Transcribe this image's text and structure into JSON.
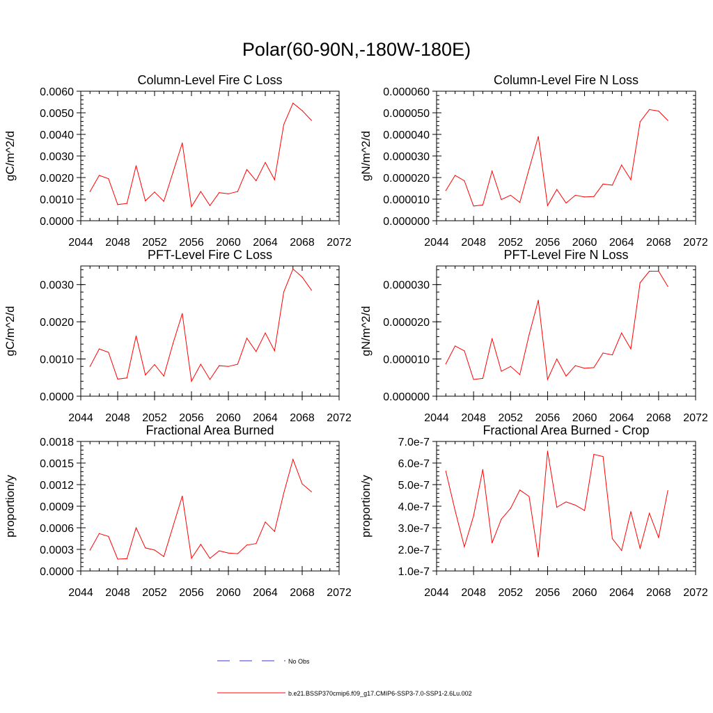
{
  "title": "Polar(60-90N,-180W-180E)",
  "legend": {
    "items": [
      {
        "label": "No Obs",
        "style": "dashed",
        "color": "#3a3acc"
      },
      {
        "label": "b.e21.BSSP370cmip6.f09_g17.CMIP6-SSP3-7.0-SSP1-2.6Lu.002",
        "style": "solid",
        "color": "#ff0000"
      }
    ]
  },
  "chart_data": [
    {
      "type": "line",
      "title": "Column-Level Fire C Loss",
      "ylabel": "gC/m^2/d",
      "xlim": [
        2044,
        2072
      ],
      "xticks": [
        "2044",
        "2048",
        "2052",
        "2056",
        "2060",
        "2064",
        "2068",
        "2072"
      ],
      "ylim": [
        0,
        0.006
      ],
      "yticks": [
        "0.0000",
        "0.0010",
        "0.0020",
        "0.0030",
        "0.0040",
        "0.0050",
        "0.0060"
      ],
      "series": [
        {
          "color": "#ff0000",
          "x": [
            2045,
            2046,
            2047,
            2048,
            2049,
            2050,
            2051,
            2052,
            2053,
            2054,
            2055,
            2056,
            2057,
            2058,
            2059,
            2060,
            2061,
            2062,
            2063,
            2064,
            2065,
            2066,
            2067,
            2068,
            2069
          ],
          "y": [
            0.00135,
            0.0021,
            0.00195,
            0.00075,
            0.0008,
            0.00255,
            0.00092,
            0.00133,
            0.0009,
            0.00225,
            0.0036,
            0.00065,
            0.00135,
            0.0007,
            0.0013,
            0.00125,
            0.00135,
            0.00237,
            0.00185,
            0.0027,
            0.0019,
            0.00445,
            0.00545,
            0.0051,
            0.00465
          ]
        }
      ]
    },
    {
      "type": "line",
      "title": "Column-Level Fire N Loss",
      "ylabel": "gN/m^2/d",
      "xlim": [
        2044,
        2072
      ],
      "xticks": [
        "2044",
        "2048",
        "2052",
        "2056",
        "2060",
        "2064",
        "2068",
        "2072"
      ],
      "ylim": [
        0,
        6e-05
      ],
      "yticks": [
        "0.000000",
        "0.000010",
        "0.000020",
        "0.000030",
        "0.000040",
        "0.000050",
        "0.000060"
      ],
      "series": [
        {
          "color": "#ff0000",
          "x": [
            2045,
            2046,
            2047,
            2048,
            2049,
            2050,
            2051,
            2052,
            2053,
            2054,
            2055,
            2056,
            2057,
            2058,
            2059,
            2060,
            2061,
            2062,
            2063,
            2064,
            2065,
            2066,
            2067,
            2068,
            2069
          ],
          "y": [
            1.4e-05,
            2.1e-05,
            1.85e-05,
            6.8e-06,
            7.3e-06,
            2.3e-05,
            9.8e-06,
            1.18e-05,
            8.5e-06,
            2.4e-05,
            3.9e-05,
            7e-06,
            1.45e-05,
            8.2e-06,
            1.18e-05,
            1.1e-05,
            1.12e-05,
            1.7e-05,
            1.65e-05,
            2.58e-05,
            1.9e-05,
            4.58e-05,
            5.15e-05,
            5.08e-05,
            4.65e-05
          ]
        }
      ]
    },
    {
      "type": "line",
      "title": "PFT-Level Fire C Loss",
      "ylabel": "gC/m^2/d",
      "xlim": [
        2044,
        2072
      ],
      "xticks": [
        "2044",
        "2048",
        "2052",
        "2056",
        "2060",
        "2064",
        "2068",
        "2072"
      ],
      "ylim": [
        0,
        0.0035
      ],
      "yticks": [
        "0.0000",
        "0.0010",
        "0.0020",
        "0.0030"
      ],
      "yticks_values": [
        0,
        0.001,
        0.002,
        0.003
      ],
      "series": [
        {
          "color": "#ff0000",
          "x": [
            2045,
            2046,
            2047,
            2048,
            2049,
            2050,
            2051,
            2052,
            2053,
            2054,
            2055,
            2056,
            2057,
            2058,
            2059,
            2060,
            2061,
            2062,
            2063,
            2064,
            2065,
            2066,
            2067,
            2068,
            2069
          ],
          "y": [
            0.0008,
            0.00127,
            0.00118,
            0.00046,
            0.00049,
            0.00162,
            0.00057,
            0.00085,
            0.00054,
            0.00142,
            0.00222,
            0.0004,
            0.00086,
            0.00045,
            0.00082,
            0.0008,
            0.00086,
            0.00156,
            0.0012,
            0.0017,
            0.00122,
            0.0028,
            0.00342,
            0.0032,
            0.00285
          ]
        }
      ]
    },
    {
      "type": "line",
      "title": "PFT-Level Fire N Loss",
      "ylabel": "gN/m^2/d",
      "xlim": [
        2044,
        2072
      ],
      "xticks": [
        "2044",
        "2048",
        "2052",
        "2056",
        "2060",
        "2064",
        "2068",
        "2072"
      ],
      "ylim": [
        0,
        3.5e-05
      ],
      "yticks": [
        "0.000000",
        "0.000010",
        "0.000020",
        "0.000030"
      ],
      "yticks_values": [
        0,
        1e-05,
        2e-05,
        3e-05
      ],
      "series": [
        {
          "color": "#ff0000",
          "x": [
            2045,
            2046,
            2047,
            2048,
            2049,
            2050,
            2051,
            2052,
            2053,
            2054,
            2055,
            2056,
            2057,
            2058,
            2059,
            2060,
            2061,
            2062,
            2063,
            2064,
            2065,
            2066,
            2067,
            2068,
            2069
          ],
          "y": [
            8.7e-06,
            1.35e-05,
            1.22e-05,
            4.5e-06,
            4.8e-06,
            1.55e-05,
            6.7e-06,
            8e-06,
            5.8e-06,
            1.65e-05,
            2.58e-05,
            4.5e-06,
            1e-05,
            5.4e-06,
            8.2e-06,
            7.5e-06,
            7.7e-06,
            1.16e-05,
            1.11e-05,
            1.7e-05,
            1.27e-05,
            3.05e-05,
            3.36e-05,
            3.36e-05,
            2.95e-05
          ]
        }
      ]
    },
    {
      "type": "line",
      "title": "Fractional Area Burned",
      "ylabel": "proportion/y",
      "xlim": [
        2044,
        2072
      ],
      "xticks": [
        "2044",
        "2048",
        "2052",
        "2056",
        "2060",
        "2064",
        "2068",
        "2072"
      ],
      "ylim": [
        0,
        0.0018
      ],
      "yticks": [
        "0.0000",
        "0.0003",
        "0.0006",
        "0.0009",
        "0.0012",
        "0.0015",
        "0.0018"
      ],
      "series": [
        {
          "color": "#ff0000",
          "x": [
            2045,
            2046,
            2047,
            2048,
            2049,
            2050,
            2051,
            2052,
            2053,
            2054,
            2055,
            2056,
            2057,
            2058,
            2059,
            2060,
            2061,
            2062,
            2063,
            2064,
            2065,
            2066,
            2067,
            2068,
            2069
          ],
          "y": [
            0.00029,
            0.00052,
            0.00048,
            0.000165,
            0.00017,
            0.0006,
            0.00032,
            0.00029,
            0.0002,
            0.00062,
            0.00104,
            0.000175,
            0.00037,
            0.000175,
            0.00028,
            0.00025,
            0.00024,
            0.00036,
            0.00038,
            0.00068,
            0.00055,
            0.00108,
            0.00155,
            0.00121,
            0.0011
          ]
        }
      ]
    },
    {
      "type": "line",
      "title": "Fractional Area Burned - Crop",
      "ylabel": "proportion/y",
      "xlim": [
        2044,
        2072
      ],
      "xticks": [
        "2044",
        "2048",
        "2052",
        "2056",
        "2060",
        "2064",
        "2068",
        "2072"
      ],
      "ylim": [
        1e-07,
        7e-07
      ],
      "yticks": [
        "1.0e-7",
        "2.0e-7",
        "3.0e-7",
        "4.0e-7",
        "5.0e-7",
        "6.0e-7",
        "7.0e-7"
      ],
      "series": [
        {
          "color": "#ff0000",
          "x": [
            2045,
            2046,
            2047,
            2048,
            2049,
            2050,
            2051,
            2052,
            2053,
            2054,
            2055,
            2056,
            2057,
            2058,
            2059,
            2060,
            2061,
            2062,
            2063,
            2064,
            2065,
            2066,
            2067,
            2068,
            2069
          ],
          "y": [
            5.62e-07,
            3.8e-07,
            2.12e-07,
            3.55e-07,
            5.7e-07,
            2.3e-07,
            3.4e-07,
            3.9e-07,
            4.75e-07,
            4.45e-07,
            1.65e-07,
            6.55e-07,
            3.95e-07,
            4.2e-07,
            4.05e-07,
            3.8e-07,
            6.4e-07,
            6.3e-07,
            2.5e-07,
            1.95e-07,
            3.75e-07,
            2.05e-07,
            3.67e-07,
            2.55e-07,
            4.72e-07
          ]
        }
      ]
    }
  ]
}
